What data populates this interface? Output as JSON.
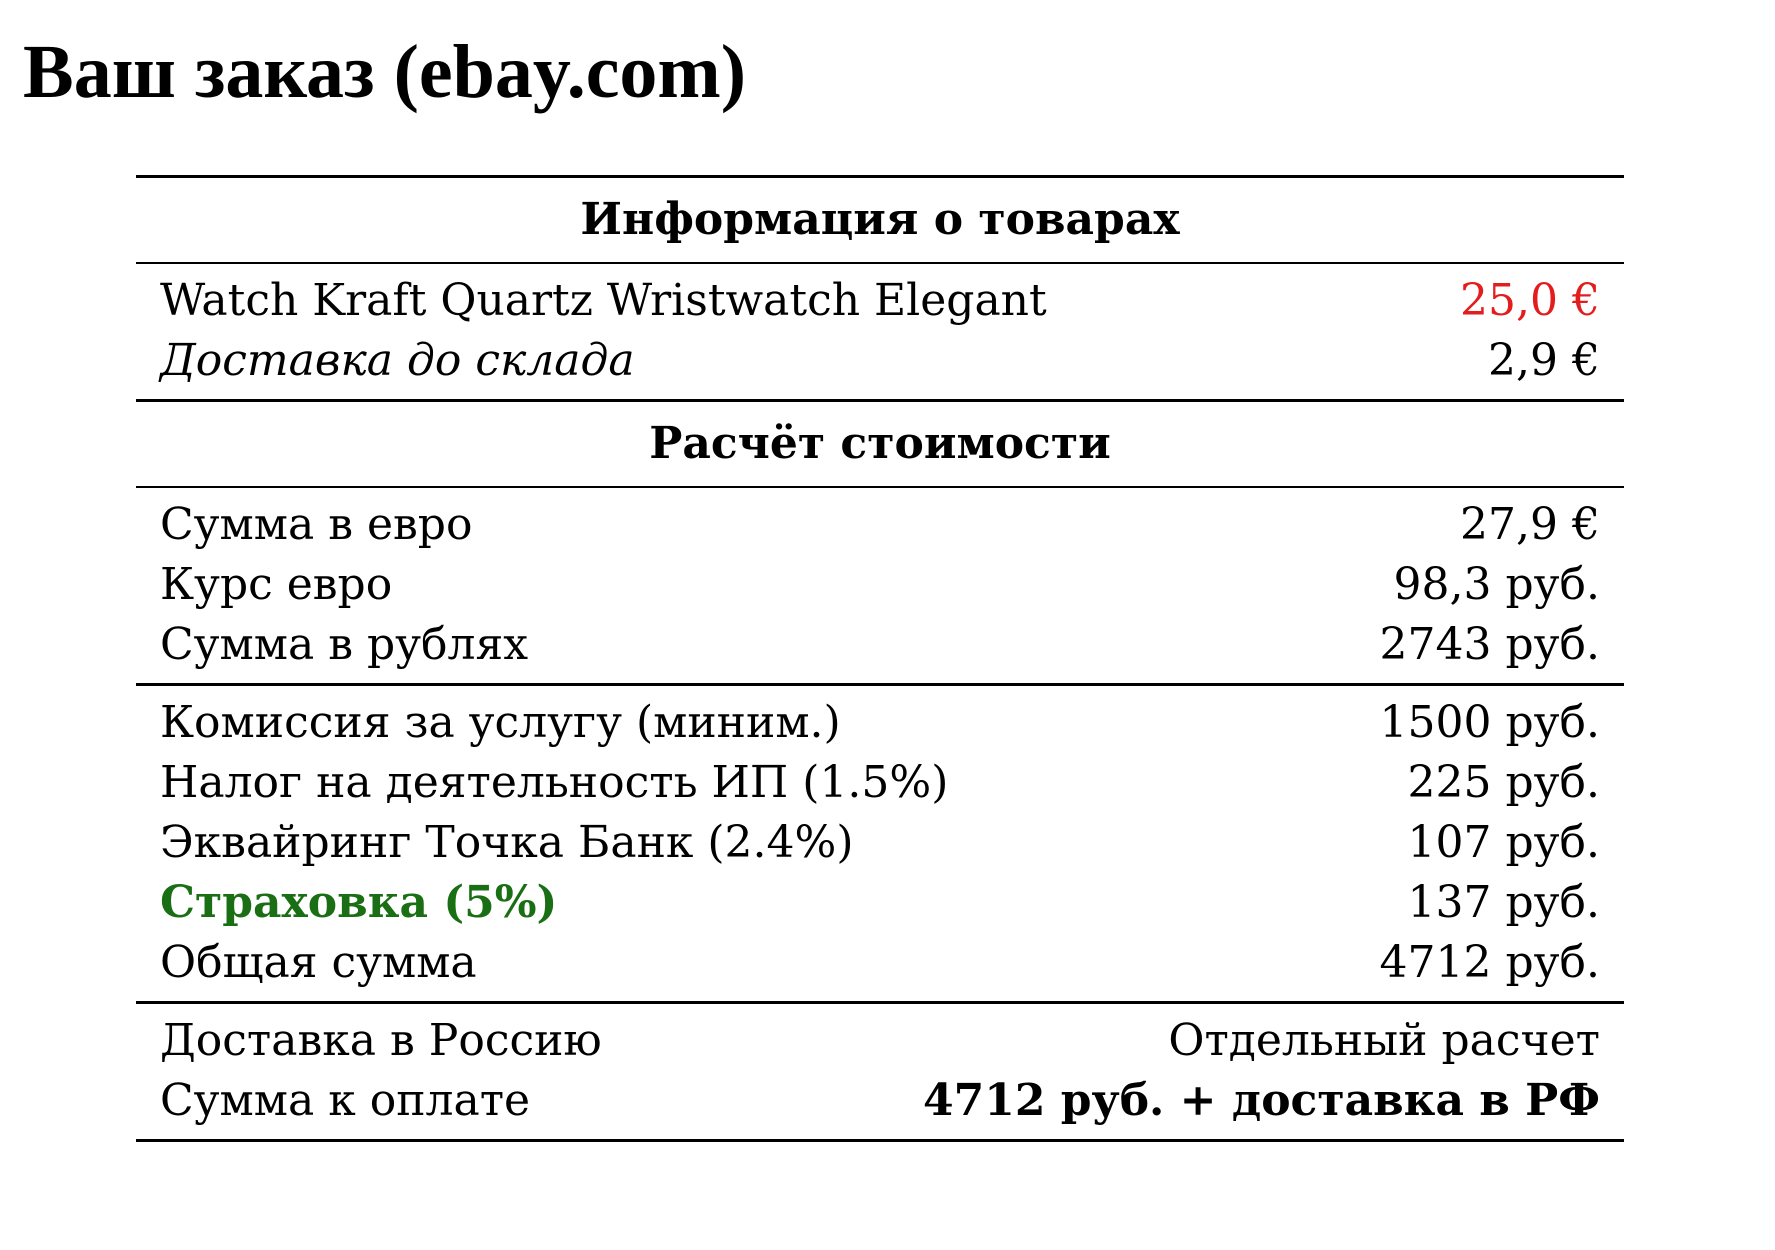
{
  "title": "Ваш заказ (ebay.com)",
  "colors": {
    "price_highlight": "#e31d1d",
    "insurance_label": "#1a6e14"
  },
  "sections": {
    "items": {
      "header": "Информация о товарах",
      "rows": [
        {
          "label": "Watch Kraft Quartz Wristwatch Elegant",
          "value": "25,0 €"
        },
        {
          "label": "Доставка до склада",
          "value": "2,9 €"
        }
      ]
    },
    "calc": {
      "header": "Расчёт стоимости",
      "conversion_rows": [
        {
          "label": "Сумма в евро",
          "value": "27,9 €"
        },
        {
          "label": "Курс евро",
          "value": "98,3 руб."
        },
        {
          "label": "Сумма в рублях",
          "value": "2743 руб."
        }
      ],
      "fee_rows": [
        {
          "label": "Комиссия за услугу (миним.)",
          "value": "1500 руб."
        },
        {
          "label": "Налог на деятельность ИП (1.5%)",
          "value": "225 руб."
        },
        {
          "label": "Эквайринг Точка Банк (2.4%)",
          "value": "107 руб."
        },
        {
          "label": "Страховка (5%)",
          "value": "137 руб."
        },
        {
          "label": "Общая сумма",
          "value": "4712 руб."
        }
      ],
      "payment_rows": [
        {
          "label": "Доставка в Россию",
          "value": "Отдельный расчет"
        },
        {
          "label": "Сумма к оплате",
          "value": "4712 руб. + доставка в РФ"
        }
      ]
    }
  }
}
